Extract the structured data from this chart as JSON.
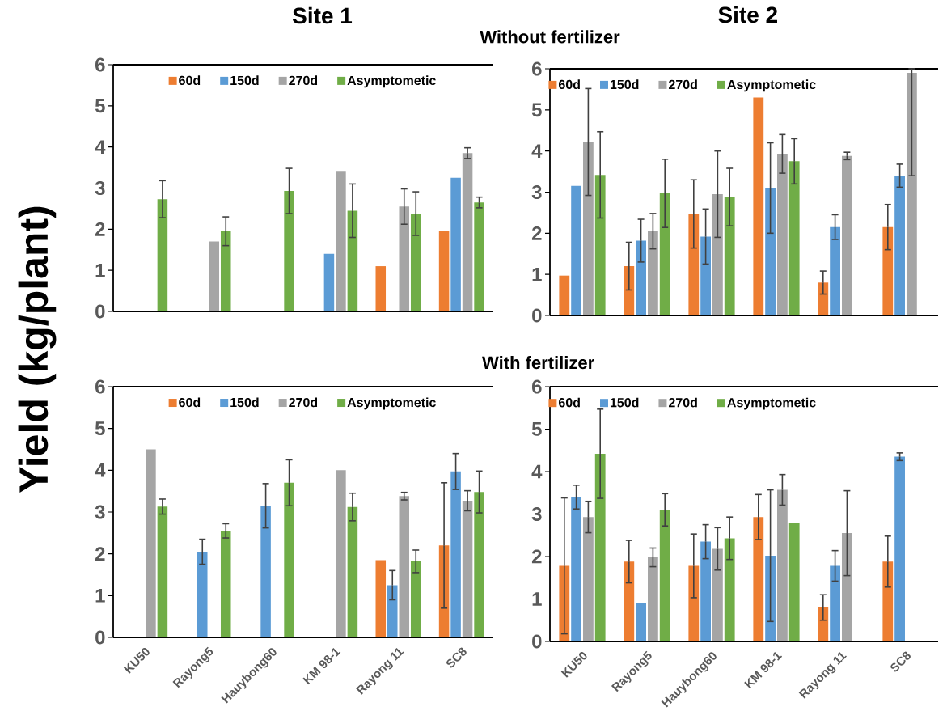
{
  "chart_data": [
    {
      "type": "bar",
      "title": "Site 1",
      "categories": [
        null,
        null,
        null,
        null,
        null,
        null
      ],
      "ylim": [
        0,
        6
      ],
      "yticks": [
        0,
        1,
        2,
        3,
        4,
        5,
        6
      ],
      "legend": "top",
      "tick_labels": "y",
      "series": [
        {
          "name": "60d",
          "color": "#ed7d31",
          "values": [
            null,
            null,
            null,
            null,
            1.1,
            1.95
          ],
          "errors": [
            null,
            null,
            null,
            null,
            null,
            null
          ]
        },
        {
          "name": "150d",
          "color": "#5b9bd5",
          "values": [
            null,
            null,
            null,
            1.4,
            null,
            3.25
          ],
          "errors": [
            null,
            null,
            null,
            null,
            null,
            null
          ]
        },
        {
          "name": "270d",
          "color": "#a5a5a5",
          "values": [
            null,
            1.7,
            null,
            3.4,
            2.55,
            3.85
          ],
          "errors": [
            null,
            null,
            null,
            null,
            0.43,
            0.13
          ]
        },
        {
          "name": "Asymptometic",
          "color": "#70ad47",
          "values": [
            2.73,
            1.95,
            2.93,
            2.45,
            2.38,
            2.65
          ],
          "errors": [
            0.45,
            0.35,
            0.55,
            0.65,
            0.53,
            0.13
          ]
        }
      ]
    },
    {
      "type": "bar",
      "title": "Site 2",
      "subtitle": "Without fertilizer",
      "categories": [
        null,
        null,
        null,
        null,
        null,
        null
      ],
      "ylim": [
        0,
        6
      ],
      "yticks": [
        0,
        1,
        2,
        3,
        4,
        5,
        6
      ],
      "legend": "top left",
      "tick_labels": "y",
      "series": [
        {
          "name": "60d",
          "color": "#ed7d31",
          "values": [
            0.97,
            1.2,
            2.47,
            5.3,
            0.8,
            2.15
          ],
          "errors": [
            null,
            0.58,
            0.83,
            null,
            0.28,
            0.55
          ]
        },
        {
          "name": "150d",
          "color": "#5b9bd5",
          "values": [
            3.15,
            1.82,
            1.92,
            3.1,
            2.15,
            3.4
          ],
          "errors": [
            null,
            0.52,
            0.67,
            1.1,
            0.3,
            0.28
          ]
        },
        {
          "name": "270d",
          "color": "#a5a5a5",
          "values": [
            4.22,
            2.05,
            2.95,
            3.93,
            3.88,
            5.9
          ],
          "errors": [
            1.3,
            0.43,
            1.05,
            0.47,
            0.09,
            [
              3.4,
              6.0
            ]
          ]
        },
        {
          "name": "Asymptometic",
          "color": "#70ad47",
          "values": [
            3.42,
            2.97,
            2.88,
            3.75,
            null,
            null
          ],
          "errors": [
            1.05,
            0.83,
            0.7,
            0.55,
            null,
            null
          ]
        }
      ]
    },
    {
      "type": "bar",
      "ylabel": "Yield (kg/plant)",
      "categories": [
        "KU50",
        "Rayong5",
        "Hauybong60",
        "KM 98-1",
        "Rayong 11",
        "SC8"
      ],
      "ylim": [
        0,
        6
      ],
      "yticks": [
        0,
        1,
        2,
        3,
        4,
        5,
        6
      ],
      "legend": "top",
      "series": [
        {
          "name": "60d",
          "color": "#ed7d31",
          "values": [
            null,
            null,
            null,
            null,
            1.85,
            2.2
          ],
          "errors": [
            null,
            null,
            null,
            null,
            null,
            1.5
          ]
        },
        {
          "name": "150d",
          "color": "#5b9bd5",
          "values": [
            null,
            2.05,
            3.15,
            null,
            1.25,
            3.97
          ],
          "errors": [
            null,
            0.3,
            0.53,
            null,
            0.35,
            0.43
          ]
        },
        {
          "name": "270d",
          "color": "#a5a5a5",
          "values": [
            4.5,
            null,
            null,
            4.0,
            3.38,
            3.27
          ],
          "errors": [
            null,
            null,
            null,
            null,
            0.09,
            0.24
          ]
        },
        {
          "name": "Asymptometic",
          "color": "#70ad47",
          "values": [
            3.13,
            2.55,
            3.7,
            3.12,
            1.82,
            3.48
          ],
          "errors": [
            0.18,
            0.17,
            0.55,
            0.33,
            0.27,
            0.5
          ]
        }
      ]
    },
    {
      "type": "bar",
      "subtitle": "With fertilizer",
      "categories": [
        "KU50",
        "Rayong5",
        "Hauybong60",
        "KM 98-1",
        "Rayong 11",
        "SC8"
      ],
      "ylim": [
        0,
        6
      ],
      "yticks": [
        0,
        1,
        2,
        3,
        4,
        5,
        6
      ],
      "legend": "top left",
      "series": [
        {
          "name": "60d",
          "color": "#ed7d31",
          "values": [
            1.78,
            1.88,
            1.78,
            2.93,
            0.8,
            1.88
          ],
          "errors": [
            1.6,
            0.5,
            0.75,
            0.53,
            0.3,
            0.6
          ]
        },
        {
          "name": "150d",
          "color": "#5b9bd5",
          "values": [
            3.4,
            0.9,
            2.35,
            2.02,
            1.78,
            4.35
          ],
          "errors": [
            0.28,
            null,
            0.4,
            1.55,
            0.36,
            0.09
          ]
        },
        {
          "name": "270d",
          "color": "#a5a5a5",
          "values": [
            2.93,
            1.98,
            2.18,
            3.57,
            2.55,
            null
          ],
          "errors": [
            0.37,
            0.22,
            0.5,
            0.36,
            1.0,
            null
          ]
        },
        {
          "name": "Asymptometic",
          "color": "#70ad47",
          "values": [
            4.42,
            3.1,
            2.43,
            2.78,
            null,
            null
          ],
          "errors": [
            1.05,
            0.38,
            0.5,
            null,
            null,
            null
          ]
        }
      ]
    }
  ]
}
